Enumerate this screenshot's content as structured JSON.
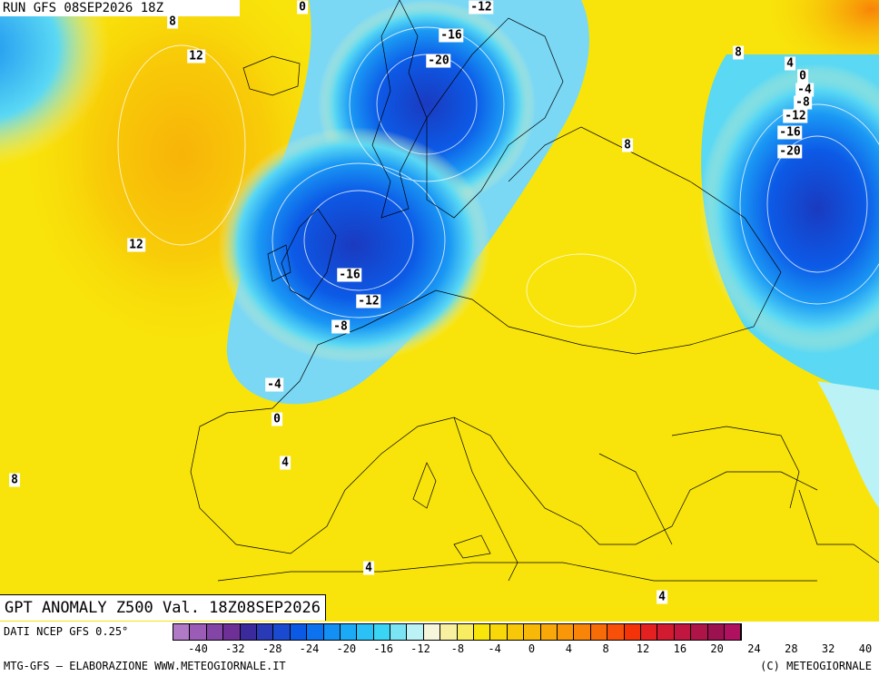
{
  "run_title": "RUN GFS 08SEP2026 18Z",
  "anomaly_title": "GPT ANOMALY Z500 Val. 18Z08SEP2026",
  "data_source": "DATI NCEP GFS 0.25°",
  "credit_left": "MTG-GFS — ELABORAZIONE WWW.METEOGIORNALE.IT",
  "credit_right": "(C) METEOGIORNALE",
  "contour_labels": [
    "0",
    "-12",
    "8",
    "-16",
    "12",
    "-20",
    "8",
    "4",
    "0",
    "-4",
    "-8",
    "-12",
    "-16",
    "-20",
    "8",
    "12",
    "-16",
    "-12",
    "-8",
    "-4",
    "0",
    "4",
    "8",
    "4",
    "4"
  ],
  "scale": {
    "colors": [
      "#b07ac6",
      "#9a5cb6",
      "#8446a6",
      "#6e3096",
      "#3a2a9c",
      "#2a3ab6",
      "#1a4ad0",
      "#0a5ae6",
      "#0c72f0",
      "#1290f4",
      "#1aaaf6",
      "#2ac2f6",
      "#3ad4f4",
      "#7ae4f4",
      "#baf2f6",
      "#f6f6dc",
      "#f8f0a0",
      "#f8ec60",
      "#f8e60a",
      "#f8d808",
      "#f8c808",
      "#f8b808",
      "#f8a808",
      "#f89808",
      "#f88408",
      "#f86c08",
      "#f85008",
      "#f43408",
      "#e42020",
      "#d21a30",
      "#c01640",
      "#ae1448",
      "#9c1250",
      "#b01060"
    ],
    "ticks": [
      "-40",
      "-32",
      "-28",
      "-24",
      "-20",
      "-16",
      "-12",
      "-8",
      "-4",
      "0",
      "4",
      "8",
      "12",
      "16",
      "20",
      "24",
      "28",
      "32",
      "40"
    ]
  },
  "map_legend": {
    "sea_land": "#f6e60a",
    "accent_blue": "#1a4ad0",
    "accent_yellow": "#f8d808"
  }
}
